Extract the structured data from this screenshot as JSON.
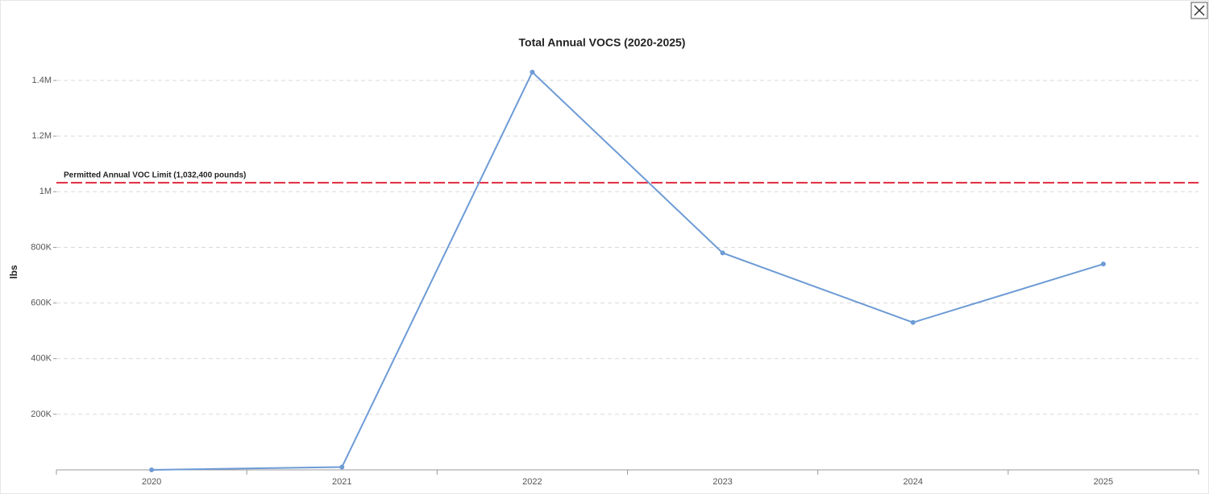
{
  "chart_data": {
    "type": "line",
    "title": "Total Annual VOCS (2020-2025)",
    "y_label": "lbs",
    "categories": [
      "2020",
      "2021",
      "2022",
      "2023",
      "2024",
      "2025"
    ],
    "series": [
      {
        "name": "Total Annual VOCS",
        "color": "#6d9bd5",
        "values": [
          0,
          10000,
          1430000,
          780000,
          530000,
          740000
        ]
      }
    ],
    "ylim": [
      0,
      1450000
    ],
    "yticks": [
      {
        "value": 200000,
        "label": "200K"
      },
      {
        "value": 400000,
        "label": "400K"
      },
      {
        "value": 600000,
        "label": "600K"
      },
      {
        "value": 800000,
        "label": "800K"
      },
      {
        "value": 1000000,
        "label": "1M"
      },
      {
        "value": 1200000,
        "label": "1.2M"
      },
      {
        "value": 1400000,
        "label": "1.4M"
      }
    ],
    "grid": true,
    "reference_line": {
      "value": 1032400,
      "label": "Permitted Annual VOC Limit (1,032,400 pounds)",
      "color": "#e0283c"
    }
  }
}
